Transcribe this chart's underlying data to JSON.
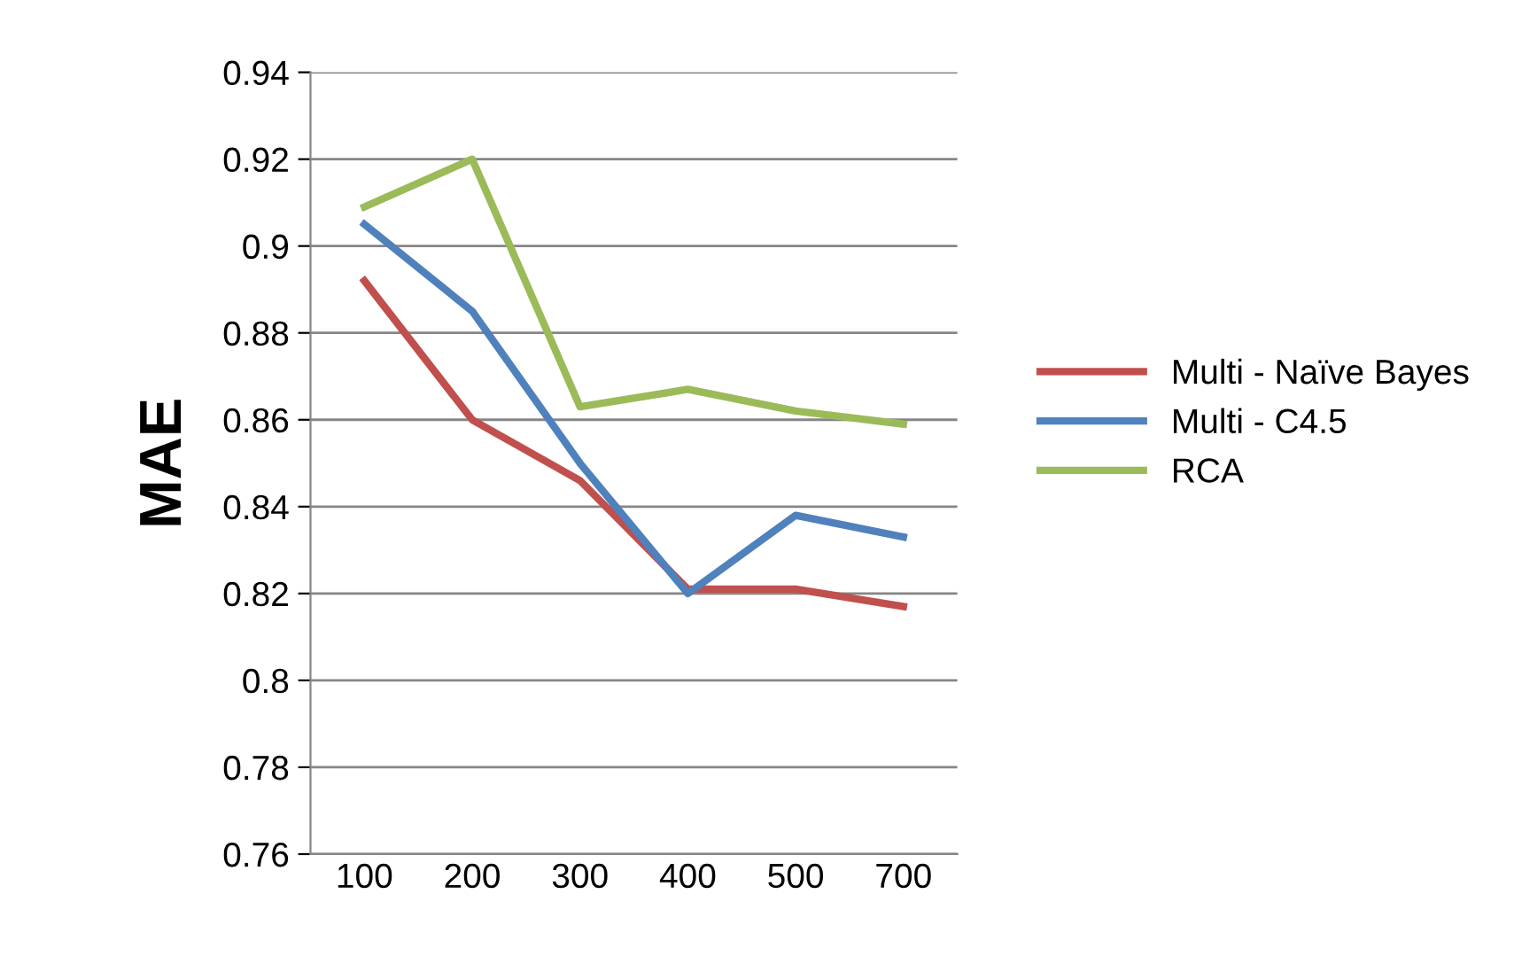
{
  "chart_data": {
    "type": "line",
    "ylabel": "MAE",
    "categories": [
      "100",
      "200",
      "300",
      "400",
      "500",
      "700"
    ],
    "series": [
      {
        "name": "Multi - Naïve Bayes",
        "color": "#c0504d",
        "values": [
          0.892,
          0.86,
          0.846,
          0.821,
          0.821,
          0.817
        ]
      },
      {
        "name": "Multi - C4.5",
        "color": "#4f81bd",
        "values": [
          0.905,
          0.885,
          0.85,
          0.82,
          0.838,
          0.833
        ]
      },
      {
        "name": "RCA",
        "color": "#9bbb59",
        "values": [
          0.909,
          0.92,
          0.863,
          0.867,
          0.862,
          0.859
        ]
      }
    ],
    "ylim": [
      0.76,
      0.94
    ],
    "yticks": [
      0.76,
      0.78,
      0.8,
      0.82,
      0.84,
      0.86,
      0.88,
      0.9,
      0.92,
      0.94
    ],
    "grid": "y",
    "legend": "right",
    "marker": "none",
    "line_style": "solid"
  }
}
